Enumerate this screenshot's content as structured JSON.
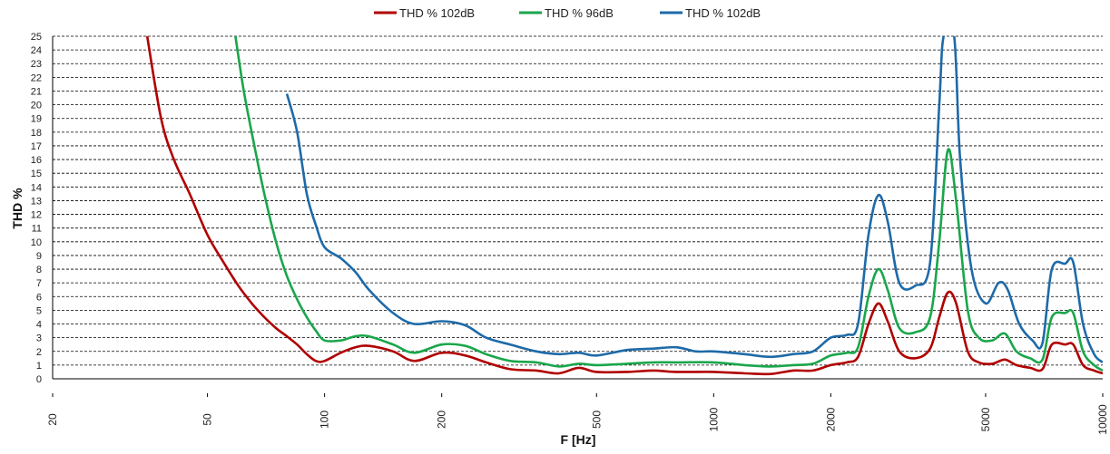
{
  "chart_data": {
    "type": "line",
    "xlabel": "F [Hz]",
    "ylabel": "THD %",
    "xscale": "log",
    "xlim": [
      20,
      10000
    ],
    "ylim": [
      0,
      25
    ],
    "grid": true,
    "legend_position": "top",
    "y_ticks": [
      "0",
      "1",
      "2",
      "3",
      "4",
      "5",
      "6",
      "7",
      "8",
      "9",
      "10",
      "11",
      "12",
      "13",
      "14",
      "15",
      "16",
      "17",
      "18",
      "19",
      "20",
      "21",
      "22",
      "23",
      "24",
      "25"
    ],
    "x_ticks": [
      {
        "value": 20,
        "label": "20"
      },
      {
        "value": 50,
        "label": "50"
      },
      {
        "value": 100,
        "label": "100"
      },
      {
        "value": 200,
        "label": "200"
      },
      {
        "value": 500,
        "label": "500"
      },
      {
        "value": 1000,
        "label": "1000"
      },
      {
        "value": 2000,
        "label": "2000"
      },
      {
        "value": 5000,
        "label": "5000"
      },
      {
        "value": 10000,
        "label": "10000"
      }
    ],
    "series": [
      {
        "name": "THD % 102dB",
        "color": "#b00000",
        "points": [
          [
            35,
            25
          ],
          [
            38,
            19
          ],
          [
            41,
            16
          ],
          [
            45,
            13.5
          ],
          [
            50,
            10.5
          ],
          [
            55,
            8.5
          ],
          [
            60,
            6.8
          ],
          [
            65,
            5.5
          ],
          [
            70,
            4.5
          ],
          [
            75,
            3.7
          ],
          [
            80,
            3.1
          ],
          [
            85,
            2.5
          ],
          [
            90,
            1.8
          ],
          [
            95,
            1.3
          ],
          [
            100,
            1.3
          ],
          [
            110,
            1.9
          ],
          [
            120,
            2.3
          ],
          [
            130,
            2.4
          ],
          [
            150,
            2.0
          ],
          [
            170,
            1.3
          ],
          [
            200,
            1.9
          ],
          [
            230,
            1.7
          ],
          [
            260,
            1.2
          ],
          [
            300,
            0.7
          ],
          [
            350,
            0.6
          ],
          [
            400,
            0.4
          ],
          [
            450,
            0.8
          ],
          [
            500,
            0.5
          ],
          [
            600,
            0.5
          ],
          [
            700,
            0.6
          ],
          [
            800,
            0.5
          ],
          [
            1000,
            0.5
          ],
          [
            1200,
            0.4
          ],
          [
            1400,
            0.35
          ],
          [
            1600,
            0.6
          ],
          [
            1800,
            0.6
          ],
          [
            2000,
            1.0
          ],
          [
            2200,
            1.2
          ],
          [
            2350,
            1.6
          ],
          [
            2500,
            4.0
          ],
          [
            2650,
            5.5
          ],
          [
            2800,
            4.2
          ],
          [
            3000,
            2.0
          ],
          [
            3300,
            1.5
          ],
          [
            3600,
            2.2
          ],
          [
            3800,
            4.5
          ],
          [
            4000,
            6.3
          ],
          [
            4200,
            5.5
          ],
          [
            4500,
            2.0
          ],
          [
            4800,
            1.2
          ],
          [
            5200,
            1.1
          ],
          [
            5600,
            1.4
          ],
          [
            6000,
            1.0
          ],
          [
            6500,
            0.8
          ],
          [
            7000,
            0.7
          ],
          [
            7400,
            2.5
          ],
          [
            8000,
            2.5
          ],
          [
            8400,
            2.5
          ],
          [
            8900,
            1.0
          ],
          [
            9500,
            0.6
          ],
          [
            10000,
            0.4
          ]
        ]
      },
      {
        "name": "THD % 96dB",
        "color": "#1aa64b",
        "points": [
          [
            59,
            25
          ],
          [
            62,
            21
          ],
          [
            66,
            17
          ],
          [
            70,
            13.5
          ],
          [
            75,
            10
          ],
          [
            80,
            7.5
          ],
          [
            85,
            5.8
          ],
          [
            90,
            4.5
          ],
          [
            95,
            3.5
          ],
          [
            100,
            2.8
          ],
          [
            110,
            2.8
          ],
          [
            120,
            3.1
          ],
          [
            130,
            3.1
          ],
          [
            150,
            2.5
          ],
          [
            170,
            1.9
          ],
          [
            200,
            2.5
          ],
          [
            230,
            2.4
          ],
          [
            260,
            1.8
          ],
          [
            300,
            1.3
          ],
          [
            350,
            1.2
          ],
          [
            400,
            0.9
          ],
          [
            450,
            1.1
          ],
          [
            500,
            1.0
          ],
          [
            600,
            1.1
          ],
          [
            700,
            1.2
          ],
          [
            800,
            1.2
          ],
          [
            1000,
            1.2
          ],
          [
            1200,
            1.0
          ],
          [
            1400,
            0.9
          ],
          [
            1600,
            1.0
          ],
          [
            1800,
            1.1
          ],
          [
            2000,
            1.7
          ],
          [
            2200,
            1.9
          ],
          [
            2350,
            2.3
          ],
          [
            2500,
            6.0
          ],
          [
            2650,
            8.0
          ],
          [
            2800,
            6.5
          ],
          [
            3000,
            3.7
          ],
          [
            3300,
            3.4
          ],
          [
            3600,
            4.5
          ],
          [
            3800,
            10.0
          ],
          [
            4000,
            16.7
          ],
          [
            4200,
            13.0
          ],
          [
            4500,
            5.0
          ],
          [
            4800,
            3.0
          ],
          [
            5200,
            2.8
          ],
          [
            5600,
            3.3
          ],
          [
            6000,
            2.0
          ],
          [
            6500,
            1.5
          ],
          [
            7000,
            1.4
          ],
          [
            7400,
            4.5
          ],
          [
            8000,
            4.8
          ],
          [
            8400,
            4.8
          ],
          [
            8900,
            2.0
          ],
          [
            9500,
            1.0
          ],
          [
            10000,
            0.6
          ]
        ]
      },
      {
        "name": "THD % 102dB",
        "color": "#1e6aa8",
        "points": [
          [
            80,
            20.8
          ],
          [
            85,
            18
          ],
          [
            90,
            13.5
          ],
          [
            95,
            11.2
          ],
          [
            100,
            9.6
          ],
          [
            110,
            8.8
          ],
          [
            120,
            7.8
          ],
          [
            130,
            6.5
          ],
          [
            150,
            4.8
          ],
          [
            170,
            4.0
          ],
          [
            200,
            4.2
          ],
          [
            230,
            3.9
          ],
          [
            260,
            3.0
          ],
          [
            300,
            2.5
          ],
          [
            350,
            2.0
          ],
          [
            400,
            1.8
          ],
          [
            450,
            1.9
          ],
          [
            500,
            1.7
          ],
          [
            600,
            2.1
          ],
          [
            700,
            2.2
          ],
          [
            800,
            2.3
          ],
          [
            900,
            2.0
          ],
          [
            1000,
            2.0
          ],
          [
            1200,
            1.8
          ],
          [
            1400,
            1.6
          ],
          [
            1600,
            1.8
          ],
          [
            1800,
            2.0
          ],
          [
            2000,
            3.0
          ],
          [
            2200,
            3.2
          ],
          [
            2350,
            4.0
          ],
          [
            2500,
            10.5
          ],
          [
            2650,
            13.4
          ],
          [
            2800,
            11.5
          ],
          [
            3000,
            7.0
          ],
          [
            3300,
            6.8
          ],
          [
            3600,
            8.5
          ],
          [
            3800,
            20.0
          ],
          [
            3900,
            25
          ],
          [
            4150,
            25
          ],
          [
            4300,
            16.0
          ],
          [
            4600,
            8.0
          ],
          [
            5000,
            5.5
          ],
          [
            5400,
            7.0
          ],
          [
            5700,
            6.5
          ],
          [
            6100,
            4.0
          ],
          [
            6600,
            2.8
          ],
          [
            7000,
            2.6
          ],
          [
            7400,
            8.0
          ],
          [
            8000,
            8.4
          ],
          [
            8400,
            8.5
          ],
          [
            8900,
            4.0
          ],
          [
            9500,
            1.8
          ],
          [
            10000,
            1.2
          ]
        ]
      }
    ]
  }
}
